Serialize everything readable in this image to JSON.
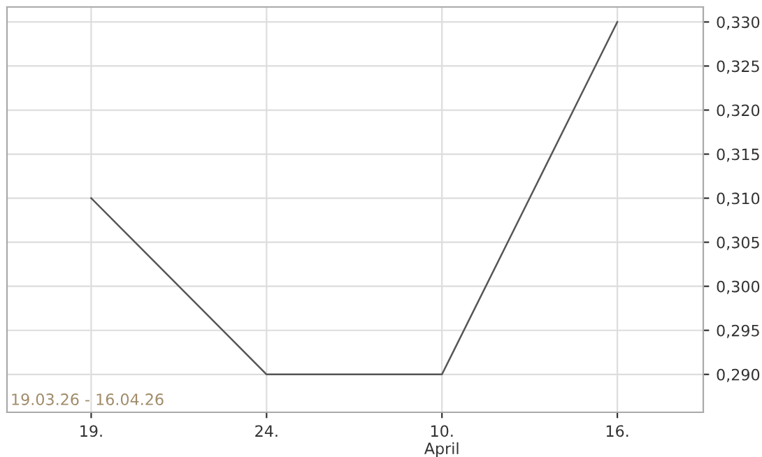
{
  "chart_data": {
    "type": "line",
    "categories": [
      "19.",
      "24.",
      "10.\nApril",
      "16."
    ],
    "series": [
      {
        "color": "#555555",
        "values": [
          0.31,
          0.29,
          0.29,
          0.33
        ]
      }
    ],
    "ylim": [
      0.2857,
      0.3317
    ],
    "yticks": [
      {
        "value": 0.29,
        "label": "0,290"
      },
      {
        "value": 0.295,
        "label": "0,295"
      },
      {
        "value": 0.3,
        "label": "0,300"
      },
      {
        "value": 0.305,
        "label": "0,305"
      },
      {
        "value": 0.31,
        "label": "0,310"
      },
      {
        "value": 0.315,
        "label": "0,315"
      },
      {
        "value": 0.32,
        "label": "0,320"
      },
      {
        "value": 0.325,
        "label": "0,325"
      },
      {
        "value": 0.33,
        "label": "0,330"
      }
    ],
    "grid": true,
    "marker": "none",
    "line_style": "solid",
    "annotations": [
      "19.03.26 - 16.04.26"
    ]
  }
}
